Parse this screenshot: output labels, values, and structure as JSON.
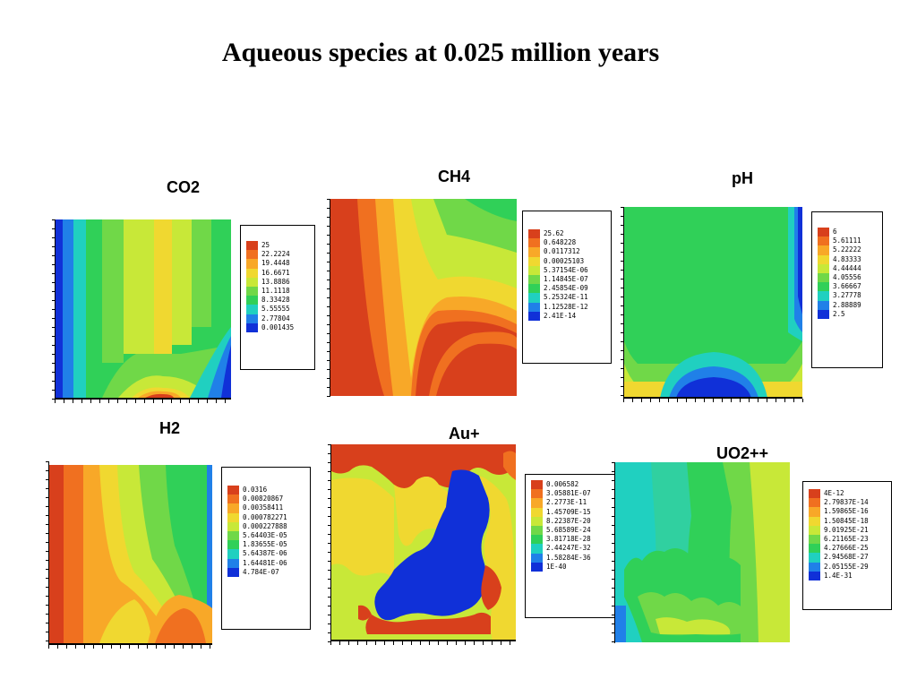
{
  "title": "Aqueous species at 0.025 million years",
  "palette": [
    "#d8401c",
    "#f07020",
    "#f8a828",
    "#f0d830",
    "#c8e838",
    "#70d848",
    "#30d058",
    "#20d0c0",
    "#2080e8",
    "#1030d8"
  ],
  "panels": [
    {
      "title": "CO2",
      "legend": [
        "25",
        "22.2224",
        "19.4448",
        "16.6671",
        "13.8886",
        "11.1118",
        "8.33428",
        "5.55555",
        "2.77804",
        "0.001435"
      ]
    },
    {
      "title": "CH4",
      "legend": [
        "25.62",
        "0.648228",
        "0.0117312",
        "0.00025103",
        "5.37154E-06",
        "1.14845E-07",
        "2.45854E-09",
        "5.25324E-11",
        "1.12528E-12",
        "2.41E-14"
      ]
    },
    {
      "title": "pH",
      "legend": [
        "6",
        "5.61111",
        "5.22222",
        "4.83333",
        "4.44444",
        "4.05556",
        "3.66667",
        "3.27778",
        "2.88889",
        "2.5"
      ]
    },
    {
      "title": "H2",
      "legend": [
        "0.0316",
        "0.00820867",
        "0.00358411",
        "0.000782271",
        "0.000227888",
        "5.64403E-05",
        "1.83655E-05",
        "5.64387E-06",
        "1.64481E-06",
        "4.784E-07"
      ]
    },
    {
      "title": "Au+",
      "legend": [
        "0.006582",
        "3.05881E-07",
        "2.2773E-11",
        "1.45709E-15",
        "8.22387E-20",
        "5.68589E-24",
        "3.81718E-28",
        "2.44247E-32",
        "1.58284E-36",
        "1E-40"
      ]
    },
    {
      "title": "UO2++",
      "legend": [
        "4E-12",
        "2.79837E-14",
        "1.59865E-16",
        "1.50845E-18",
        "9.01925E-21",
        "6.21165E-23",
        "4.27666E-25",
        "2.94568E-27",
        "2.05155E-29",
        "1.4E-31"
      ]
    }
  ],
  "chart_data": [
    {
      "type": "heatmap",
      "title": "CO2",
      "legend_levels": [
        25,
        22.2224,
        19.4448,
        16.6671,
        13.8886,
        11.1118,
        8.33428,
        5.55555,
        2.77804,
        0.001435
      ],
      "grid": false,
      "legend_position": "right"
    },
    {
      "type": "heatmap",
      "title": "CH4",
      "legend_levels": [
        25.62,
        0.648228,
        0.0117312,
        0.00025103,
        5.37154e-06,
        1.14845e-07,
        2.45854e-09,
        5.25324e-11,
        1.12528e-12,
        2.41e-14
      ],
      "grid": false,
      "legend_position": "right"
    },
    {
      "type": "heatmap",
      "title": "pH",
      "legend_levels": [
        6,
        5.61111,
        5.22222,
        4.83333,
        4.44444,
        4.05556,
        3.66667,
        3.27778,
        2.88889,
        2.5
      ],
      "grid": false,
      "legend_position": "right"
    },
    {
      "type": "heatmap",
      "title": "H2",
      "legend_levels": [
        0.0316,
        0.00820867,
        0.00358411,
        0.000782271,
        0.000227888,
        5.64403e-05,
        1.83655e-05,
        5.64387e-06,
        1.64481e-06,
        4.784e-07
      ],
      "grid": false,
      "legend_position": "right"
    },
    {
      "type": "heatmap",
      "title": "Au+",
      "legend_levels": [
        0.006582,
        3.05881e-07,
        2.2773e-11,
        1.45709e-15,
        8.22387e-20,
        5.68589e-24,
        3.81718e-28,
        2.44247e-32,
        1.58284e-36,
        1e-40
      ],
      "grid": false,
      "legend_position": "right"
    },
    {
      "type": "heatmap",
      "title": "UO2++",
      "legend_levels": [
        4e-12,
        2.79837e-14,
        1.59865e-16,
        1.50845e-18,
        9.01925e-21,
        6.21165e-23,
        4.27666e-25,
        2.94568e-27,
        2.05155e-29,
        1.4e-31
      ],
      "grid": false,
      "legend_position": "right"
    }
  ]
}
